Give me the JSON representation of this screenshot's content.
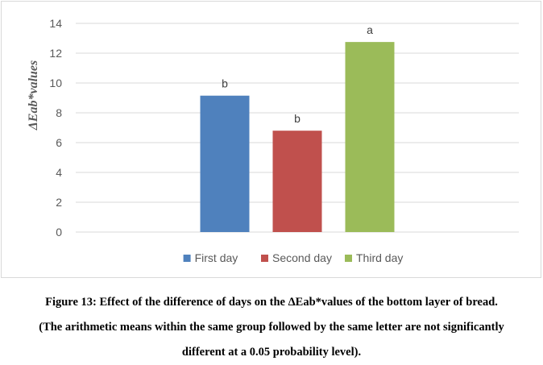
{
  "chart_data": {
    "type": "bar",
    "title": "",
    "xlabel": "",
    "ylabel": "ΔEab*values",
    "ylim": [
      0,
      14
    ],
    "yticks": [
      0,
      2,
      4,
      6,
      8,
      10,
      12,
      14
    ],
    "grid": true,
    "legend_position": "bottom",
    "categories": [
      ""
    ],
    "series": [
      {
        "name": "First day",
        "values": [
          9.15
        ],
        "color": "#4f81bd",
        "label": "b"
      },
      {
        "name": "Second day",
        "values": [
          6.8
        ],
        "color": "#c0504d",
        "label": "b"
      },
      {
        "name": "Third day",
        "values": [
          12.75
        ],
        "color": "#9bbb59",
        "label": "a"
      }
    ]
  },
  "caption": {
    "line1": "Figure 13: Effect of the difference of days on the ΔEab*values of the bottom layer of bread.",
    "line2": "(The arithmetic means within the same group followed by the same letter are not significantly",
    "line3": "different at a 0.05 probability level)."
  }
}
